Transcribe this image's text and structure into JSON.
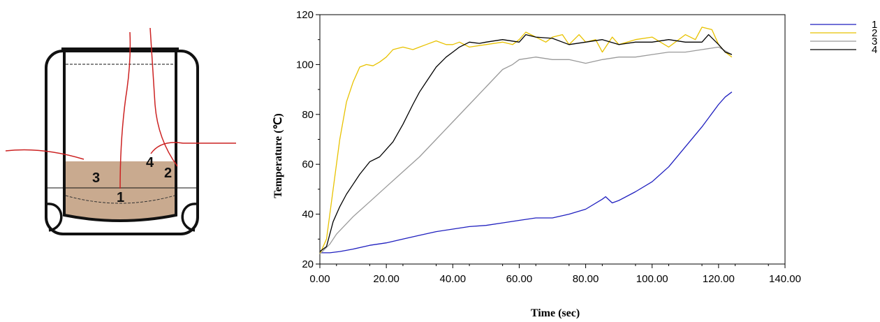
{
  "diagram": {
    "probe_labels": [
      "1",
      "2",
      "3",
      "4"
    ],
    "colors": {
      "container": "#111111",
      "food": "#c9aa8f",
      "wire": "#cc2222"
    }
  },
  "chart_data": {
    "type": "line",
    "title": "",
    "xlabel": "Time (sec)",
    "ylabel": "Temperature (℃)",
    "xlim": [
      0,
      140
    ],
    "ylim": [
      20,
      120
    ],
    "xticks": [
      "0.00",
      "20.00",
      "40.00",
      "60.00",
      "80.00",
      "100.00",
      "120.00",
      "140.00"
    ],
    "yticks": [
      "20",
      "40",
      "60",
      "80",
      "100",
      "120"
    ],
    "grid": false,
    "legend": "right",
    "series": [
      {
        "name": "1",
        "color": "#1f1fbf",
        "x": [
          0,
          3,
          6,
          10,
          15,
          20,
          25,
          30,
          35,
          40,
          45,
          50,
          55,
          60,
          65,
          70,
          75,
          80,
          85,
          86,
          88,
          90,
          95,
          100,
          105,
          110,
          115,
          120,
          122,
          124
        ],
        "y": [
          24.5,
          24.5,
          25,
          26,
          27.5,
          28.5,
          30,
          31.5,
          33,
          34,
          35,
          35.5,
          36.5,
          37.5,
          38.5,
          38.5,
          40,
          42,
          46,
          47,
          44.5,
          45.5,
          49,
          53,
          59,
          67,
          75,
          84,
          87,
          89
        ]
      },
      {
        "name": "2",
        "color": "#e8c200",
        "x": [
          0,
          2,
          4,
          6,
          8,
          10,
          12,
          14,
          16,
          18,
          20,
          22,
          25,
          28,
          30,
          32,
          35,
          38,
          40,
          42,
          45,
          50,
          55,
          58,
          60,
          62,
          65,
          68,
          70,
          73,
          75,
          78,
          80,
          83,
          85,
          88,
          90,
          95,
          100,
          105,
          110,
          113,
          115,
          118,
          120,
          122,
          124
        ],
        "y": [
          24,
          30,
          50,
          70,
          85,
          93,
          99,
          100,
          99.5,
          101,
          103,
          106,
          107,
          106,
          107,
          108,
          109.5,
          108,
          108,
          109,
          107,
          108,
          109,
          108,
          110,
          113,
          111,
          109,
          111,
          112,
          108,
          112,
          109,
          110,
          105,
          111,
          108,
          110,
          111,
          107,
          112,
          110,
          115,
          114,
          108,
          105,
          103
        ]
      },
      {
        "name": "3",
        "color": "#9a9a9a",
        "x": [
          0,
          3,
          5,
          10,
          15,
          20,
          25,
          30,
          35,
          40,
          45,
          50,
          55,
          58,
          60,
          65,
          70,
          75,
          80,
          85,
          90,
          95,
          100,
          105,
          110,
          115,
          120,
          124
        ],
        "y": [
          24,
          28,
          32,
          39,
          45,
          51,
          57,
          63,
          70,
          77,
          84,
          91,
          98,
          100,
          102,
          103,
          102,
          102,
          100.5,
          102,
          103,
          103,
          104,
          105,
          105,
          106,
          107,
          104
        ]
      },
      {
        "name": "4",
        "color": "#000000",
        "x": [
          0,
          2,
          4,
          6,
          8,
          10,
          12,
          15,
          18,
          20,
          22,
          25,
          28,
          30,
          32,
          35,
          38,
          40,
          42,
          45,
          48,
          50,
          55,
          60,
          62,
          65,
          70,
          75,
          80,
          85,
          90,
          95,
          100,
          105,
          110,
          115,
          117,
          120,
          122,
          124
        ],
        "y": [
          25,
          27,
          37,
          43,
          48,
          52,
          56,
          61,
          63,
          66,
          69,
          76,
          84,
          89,
          93,
          99,
          103,
          105,
          107,
          109,
          108.5,
          109,
          110,
          109,
          112,
          111,
          110.5,
          108,
          109,
          110,
          108,
          109,
          109,
          110,
          109,
          109,
          112,
          108,
          105,
          104
        ]
      }
    ]
  }
}
